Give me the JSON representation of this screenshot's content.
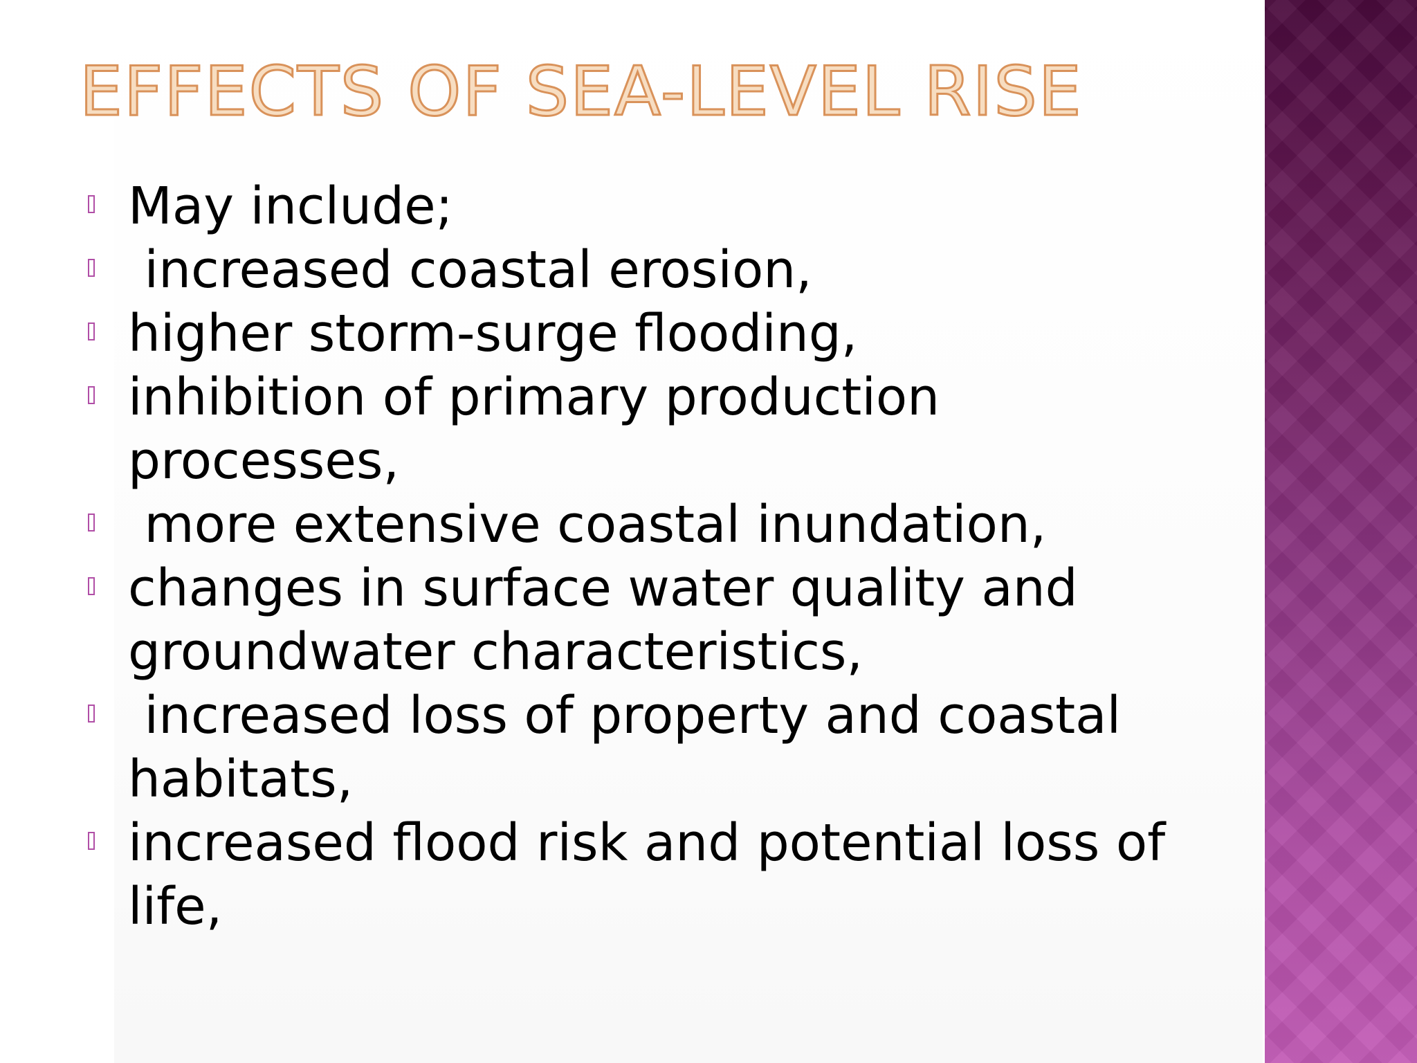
{
  "slide": {
    "title": "EFFECTS OF SEA-LEVEL RISE",
    "bullets": [
      "May include;",
      " increased coastal erosion,",
      "higher storm-surge flooding,",
      "inhibition of primary production processes,",
      " more extensive coastal inundation,",
      "changes in surface water quality and groundwater characteristics,",
      " increased loss of property and coastal habitats,",
      "increased flood risk and potential loss of life,"
    ],
    "bullet_icon": "hollow-rectangle-icon",
    "colors": {
      "title_fill": "#f7ddc1",
      "title_outline": "#d9925a",
      "text": "#000000",
      "bullet_marker": "#b04ea6",
      "sidebar_top": "#4a0a3c",
      "sidebar_bottom": "#c25ab5"
    }
  }
}
